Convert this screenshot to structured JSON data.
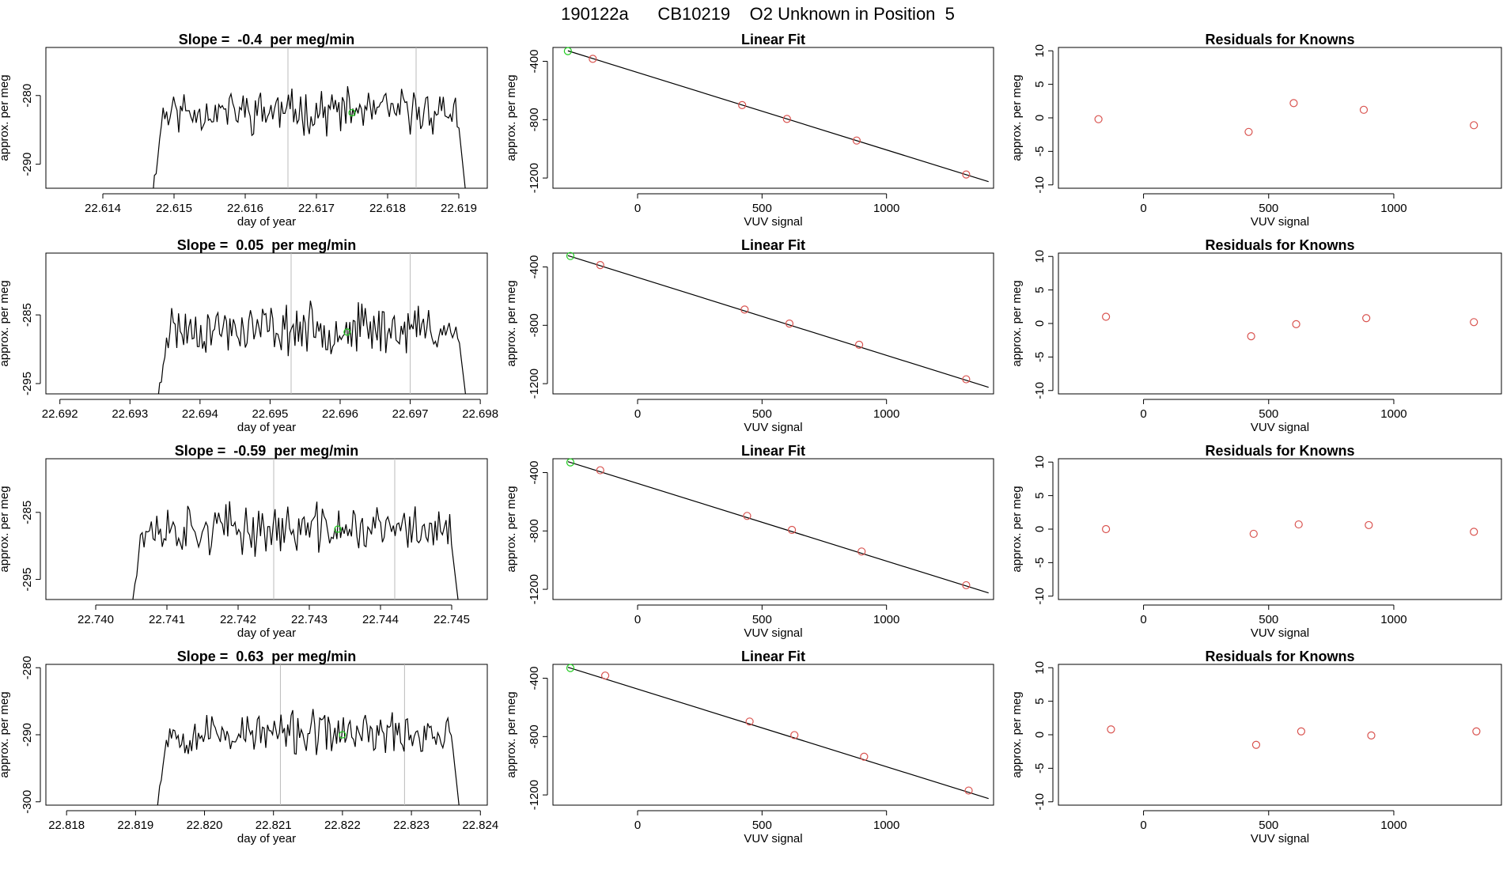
{
  "figure_title": "190122a      CB10219    O2 Unknown in Position  5",
  "colors": {
    "trace": "#000000",
    "fit_line": "#000000",
    "known_point": "#d9534f",
    "unknown_point": "#22cc22",
    "vline": "#bbbbbb",
    "frame": "#000000"
  },
  "chart_data": [
    {
      "type": "line",
      "title": "Slope =  -0.4  per meg/min",
      "xlabel": "day of year",
      "ylabel": "approx. per meg",
      "xlim": [
        22.6132,
        22.6194
      ],
      "ylim": [
        -293.5,
        -273
      ],
      "xticks": [
        22.614,
        22.615,
        22.616,
        22.617,
        22.618,
        22.619
      ],
      "xtick_labels": [
        "22.614",
        "22.615",
        "22.616",
        "22.617",
        "22.618",
        "22.619"
      ],
      "yticks": [
        -290,
        -280
      ],
      "ytick_labels": [
        "-290",
        "-280"
      ],
      "vlines": [
        22.6166,
        22.6184
      ],
      "trace": {
        "start": 22.6147,
        "end": 22.6191,
        "level": -282.3,
        "amp": 2.4,
        "seed": 11
      },
      "marker": {
        "x": 22.6175,
        "y": -282.5
      }
    },
    {
      "type": "scatter",
      "title": "Linear Fit",
      "xlabel": "VUV signal",
      "ylabel": "approx. per meg",
      "xlim": [
        -340,
        1430
      ],
      "ylim": [
        -1270,
        -305
      ],
      "xticks": [
        0,
        500,
        1000
      ],
      "xtick_labels": [
        "0",
        "500",
        "1000"
      ],
      "yticks": [
        -1200,
        -800,
        -400
      ],
      "ytick_labels": [
        "-1200",
        "-800",
        "-400"
      ],
      "fit_line": {
        "x": [
          -280,
          1410
        ],
        "y": [
          -328,
          -1225
        ]
      },
      "known_points": {
        "x": [
          -180,
          420,
          600,
          880,
          1320
        ],
        "y": [
          -383,
          -700,
          -795,
          -943,
          -1176
        ]
      },
      "unknown_point": {
        "x": -280,
        "y": -330
      }
    },
    {
      "type": "scatter",
      "title": "Residuals for Knowns",
      "xlabel": "VUV signal",
      "ylabel": "approx. per meg",
      "xlim": [
        -340,
        1430
      ],
      "ylim": [
        -10.5,
        10.5
      ],
      "xticks": [
        0,
        500,
        1000
      ],
      "xtick_labels": [
        "0",
        "500",
        "1000"
      ],
      "yticks": [
        -10,
        -5,
        0,
        5,
        10
      ],
      "ytick_labels": [
        "-10",
        "-5",
        "0",
        "5",
        "10"
      ],
      "points": {
        "x": [
          -180,
          420,
          600,
          880,
          1320
        ],
        "y": [
          -0.2,
          -2.1,
          2.2,
          1.2,
          -1.1
        ]
      }
    },
    {
      "type": "line",
      "title": "Slope =  0.05  per meg/min",
      "xlabel": "day of year",
      "ylabel": "approx. per meg",
      "xlim": [
        22.6918,
        22.6981
      ],
      "ylim": [
        -296.5,
        -276
      ],
      "xticks": [
        22.692,
        22.693,
        22.694,
        22.695,
        22.696,
        22.697,
        22.698
      ],
      "xtick_labels": [
        "22.692",
        "22.693",
        "22.694",
        "22.695",
        "22.696",
        "22.697",
        "22.698"
      ],
      "yticks": [
        -295,
        -285
      ],
      "ytick_labels": [
        "-295",
        "-285"
      ],
      "vlines": [
        22.6953,
        22.697
      ],
      "trace": {
        "start": 22.6934,
        "end": 22.6978,
        "level": -287,
        "amp": 2.7,
        "seed": 23
      },
      "marker": {
        "x": 22.6961,
        "y": -287.5
      }
    },
    {
      "type": "scatter",
      "title": "Linear Fit",
      "xlabel": "VUV signal",
      "ylabel": "approx. per meg",
      "xlim": [
        -340,
        1430
      ],
      "ylim": [
        -1270,
        -305
      ],
      "xticks": [
        0,
        500,
        1000
      ],
      "xtick_labels": [
        "0",
        "500",
        "1000"
      ],
      "yticks": [
        -1200,
        -800,
        -400
      ],
      "ytick_labels": [
        "-1200",
        "-800",
        "-400"
      ],
      "fit_line": {
        "x": [
          -280,
          1410
        ],
        "y": [
          -322,
          -1225
        ]
      },
      "known_points": {
        "x": [
          -150,
          430,
          610,
          890,
          1320
        ],
        "y": [
          -387,
          -692,
          -788,
          -933,
          -1170
        ]
      },
      "unknown_point": {
        "x": -270,
        "y": -325
      }
    },
    {
      "type": "scatter",
      "title": "Residuals for Knowns",
      "xlabel": "VUV signal",
      "ylabel": "approx. per meg",
      "xlim": [
        -340,
        1430
      ],
      "ylim": [
        -10.5,
        10.5
      ],
      "xticks": [
        0,
        500,
        1000
      ],
      "xtick_labels": [
        "0",
        "500",
        "1000"
      ],
      "yticks": [
        -10,
        -5,
        0,
        5,
        10
      ],
      "ytick_labels": [
        "-10",
        "-5",
        "0",
        "5",
        "10"
      ],
      "points": {
        "x": [
          -150,
          430,
          610,
          890,
          1320
        ],
        "y": [
          1.0,
          -1.9,
          -0.1,
          0.8,
          0.2
        ]
      }
    },
    {
      "type": "line",
      "title": "Slope =  -0.59  per meg/min",
      "xlabel": "day of year",
      "ylabel": "approx. per meg",
      "xlim": [
        22.7393,
        22.7455
      ],
      "ylim": [
        -298,
        -277
      ],
      "xticks": [
        22.74,
        22.741,
        22.742,
        22.743,
        22.744,
        22.745
      ],
      "xtick_labels": [
        "22.740",
        "22.741",
        "22.742",
        "22.743",
        "22.744",
        "22.745"
      ],
      "yticks": [
        -295,
        -285
      ],
      "ytick_labels": [
        "-295",
        "-285"
      ],
      "vlines": [
        22.7425,
        22.7442
      ],
      "trace": {
        "start": 22.7405,
        "end": 22.7451,
        "level": -287.5,
        "amp": 2.8,
        "seed": 37
      },
      "marker": {
        "x": 22.7434,
        "y": -287.5
      }
    },
    {
      "type": "scatter",
      "title": "Linear Fit",
      "xlabel": "VUV signal",
      "ylabel": "approx. per meg",
      "xlim": [
        -340,
        1430
      ],
      "ylim": [
        -1270,
        -305
      ],
      "xticks": [
        0,
        500,
        1000
      ],
      "xtick_labels": [
        "0",
        "500",
        "1000"
      ],
      "yticks": [
        -1200,
        -800,
        -400
      ],
      "ytick_labels": [
        "-1200",
        "-800",
        "-400"
      ],
      "fit_line": {
        "x": [
          -280,
          1410
        ],
        "y": [
          -325,
          -1225
        ]
      },
      "known_points": {
        "x": [
          -150,
          440,
          620,
          900,
          1320
        ],
        "y": [
          -384,
          -697,
          -793,
          -941,
          -1172
        ]
      },
      "unknown_point": {
        "x": -270,
        "y": -330
      }
    },
    {
      "type": "scatter",
      "title": "Residuals for Knowns",
      "xlabel": "VUV signal",
      "ylabel": "approx. per meg",
      "xlim": [
        -340,
        1430
      ],
      "ylim": [
        -10.5,
        10.5
      ],
      "xticks": [
        0,
        500,
        1000
      ],
      "xtick_labels": [
        "0",
        "500",
        "1000"
      ],
      "yticks": [
        -10,
        -5,
        0,
        5,
        10
      ],
      "ytick_labels": [
        "-10",
        "-5",
        "0",
        "5",
        "10"
      ],
      "points": {
        "x": [
          -150,
          440,
          620,
          900,
          1320
        ],
        "y": [
          0.0,
          -0.7,
          0.7,
          0.6,
          -0.4
        ]
      }
    },
    {
      "type": "line",
      "title": "Slope =  0.63  per meg/min",
      "xlabel": "day of year",
      "ylabel": "approx. per meg",
      "xlim": [
        22.8177,
        22.8241
      ],
      "ylim": [
        -300.5,
        -279.5
      ],
      "xticks": [
        22.818,
        22.819,
        22.82,
        22.821,
        22.822,
        22.823,
        22.824
      ],
      "xtick_labels": [
        "22.818",
        "22.819",
        "22.820",
        "22.821",
        "22.822",
        "22.823",
        "22.824"
      ],
      "yticks": [
        -300,
        -290,
        -280
      ],
      "ytick_labels": [
        "-300",
        "-290",
        "-280"
      ],
      "vlines": [
        22.8211,
        22.8229
      ],
      "trace": {
        "start": 22.8193,
        "end": 22.8237,
        "level": -289.8,
        "amp": 2.4,
        "seed": 53
      },
      "marker": {
        "x": 22.822,
        "y": -290
      }
    },
    {
      "type": "scatter",
      "title": "Linear Fit",
      "xlabel": "VUV signal",
      "ylabel": "approx. per meg",
      "xlim": [
        -340,
        1430
      ],
      "ylim": [
        -1270,
        -305
      ],
      "xticks": [
        0,
        500,
        1000
      ],
      "xtick_labels": [
        "0",
        "500",
        "1000"
      ],
      "yticks": [
        -1200,
        -800,
        -400
      ],
      "ytick_labels": [
        "-1200",
        "-800",
        "-400"
      ],
      "fit_line": {
        "x": [
          -280,
          1410
        ],
        "y": [
          -325,
          -1225
        ]
      },
      "known_points": {
        "x": [
          -130,
          450,
          630,
          910,
          1330
        ],
        "y": [
          -382,
          -697,
          -790,
          -938,
          -1170
        ]
      },
      "unknown_point": {
        "x": -270,
        "y": -330
      }
    },
    {
      "type": "scatter",
      "title": "Residuals for Knowns",
      "xlabel": "VUV signal",
      "ylabel": "approx. per meg",
      "xlim": [
        -340,
        1430
      ],
      "ylim": [
        -10.5,
        10.5
      ],
      "xticks": [
        0,
        500,
        1000
      ],
      "xtick_labels": [
        "0",
        "500",
        "1000"
      ],
      "yticks": [
        -10,
        -5,
        0,
        5,
        10
      ],
      "ytick_labels": [
        "-10",
        "-5",
        "0",
        "5",
        "10"
      ],
      "points": {
        "x": [
          -130,
          450,
          630,
          910,
          1330
        ],
        "y": [
          0.8,
          -1.5,
          0.5,
          -0.1,
          0.5
        ]
      }
    }
  ]
}
